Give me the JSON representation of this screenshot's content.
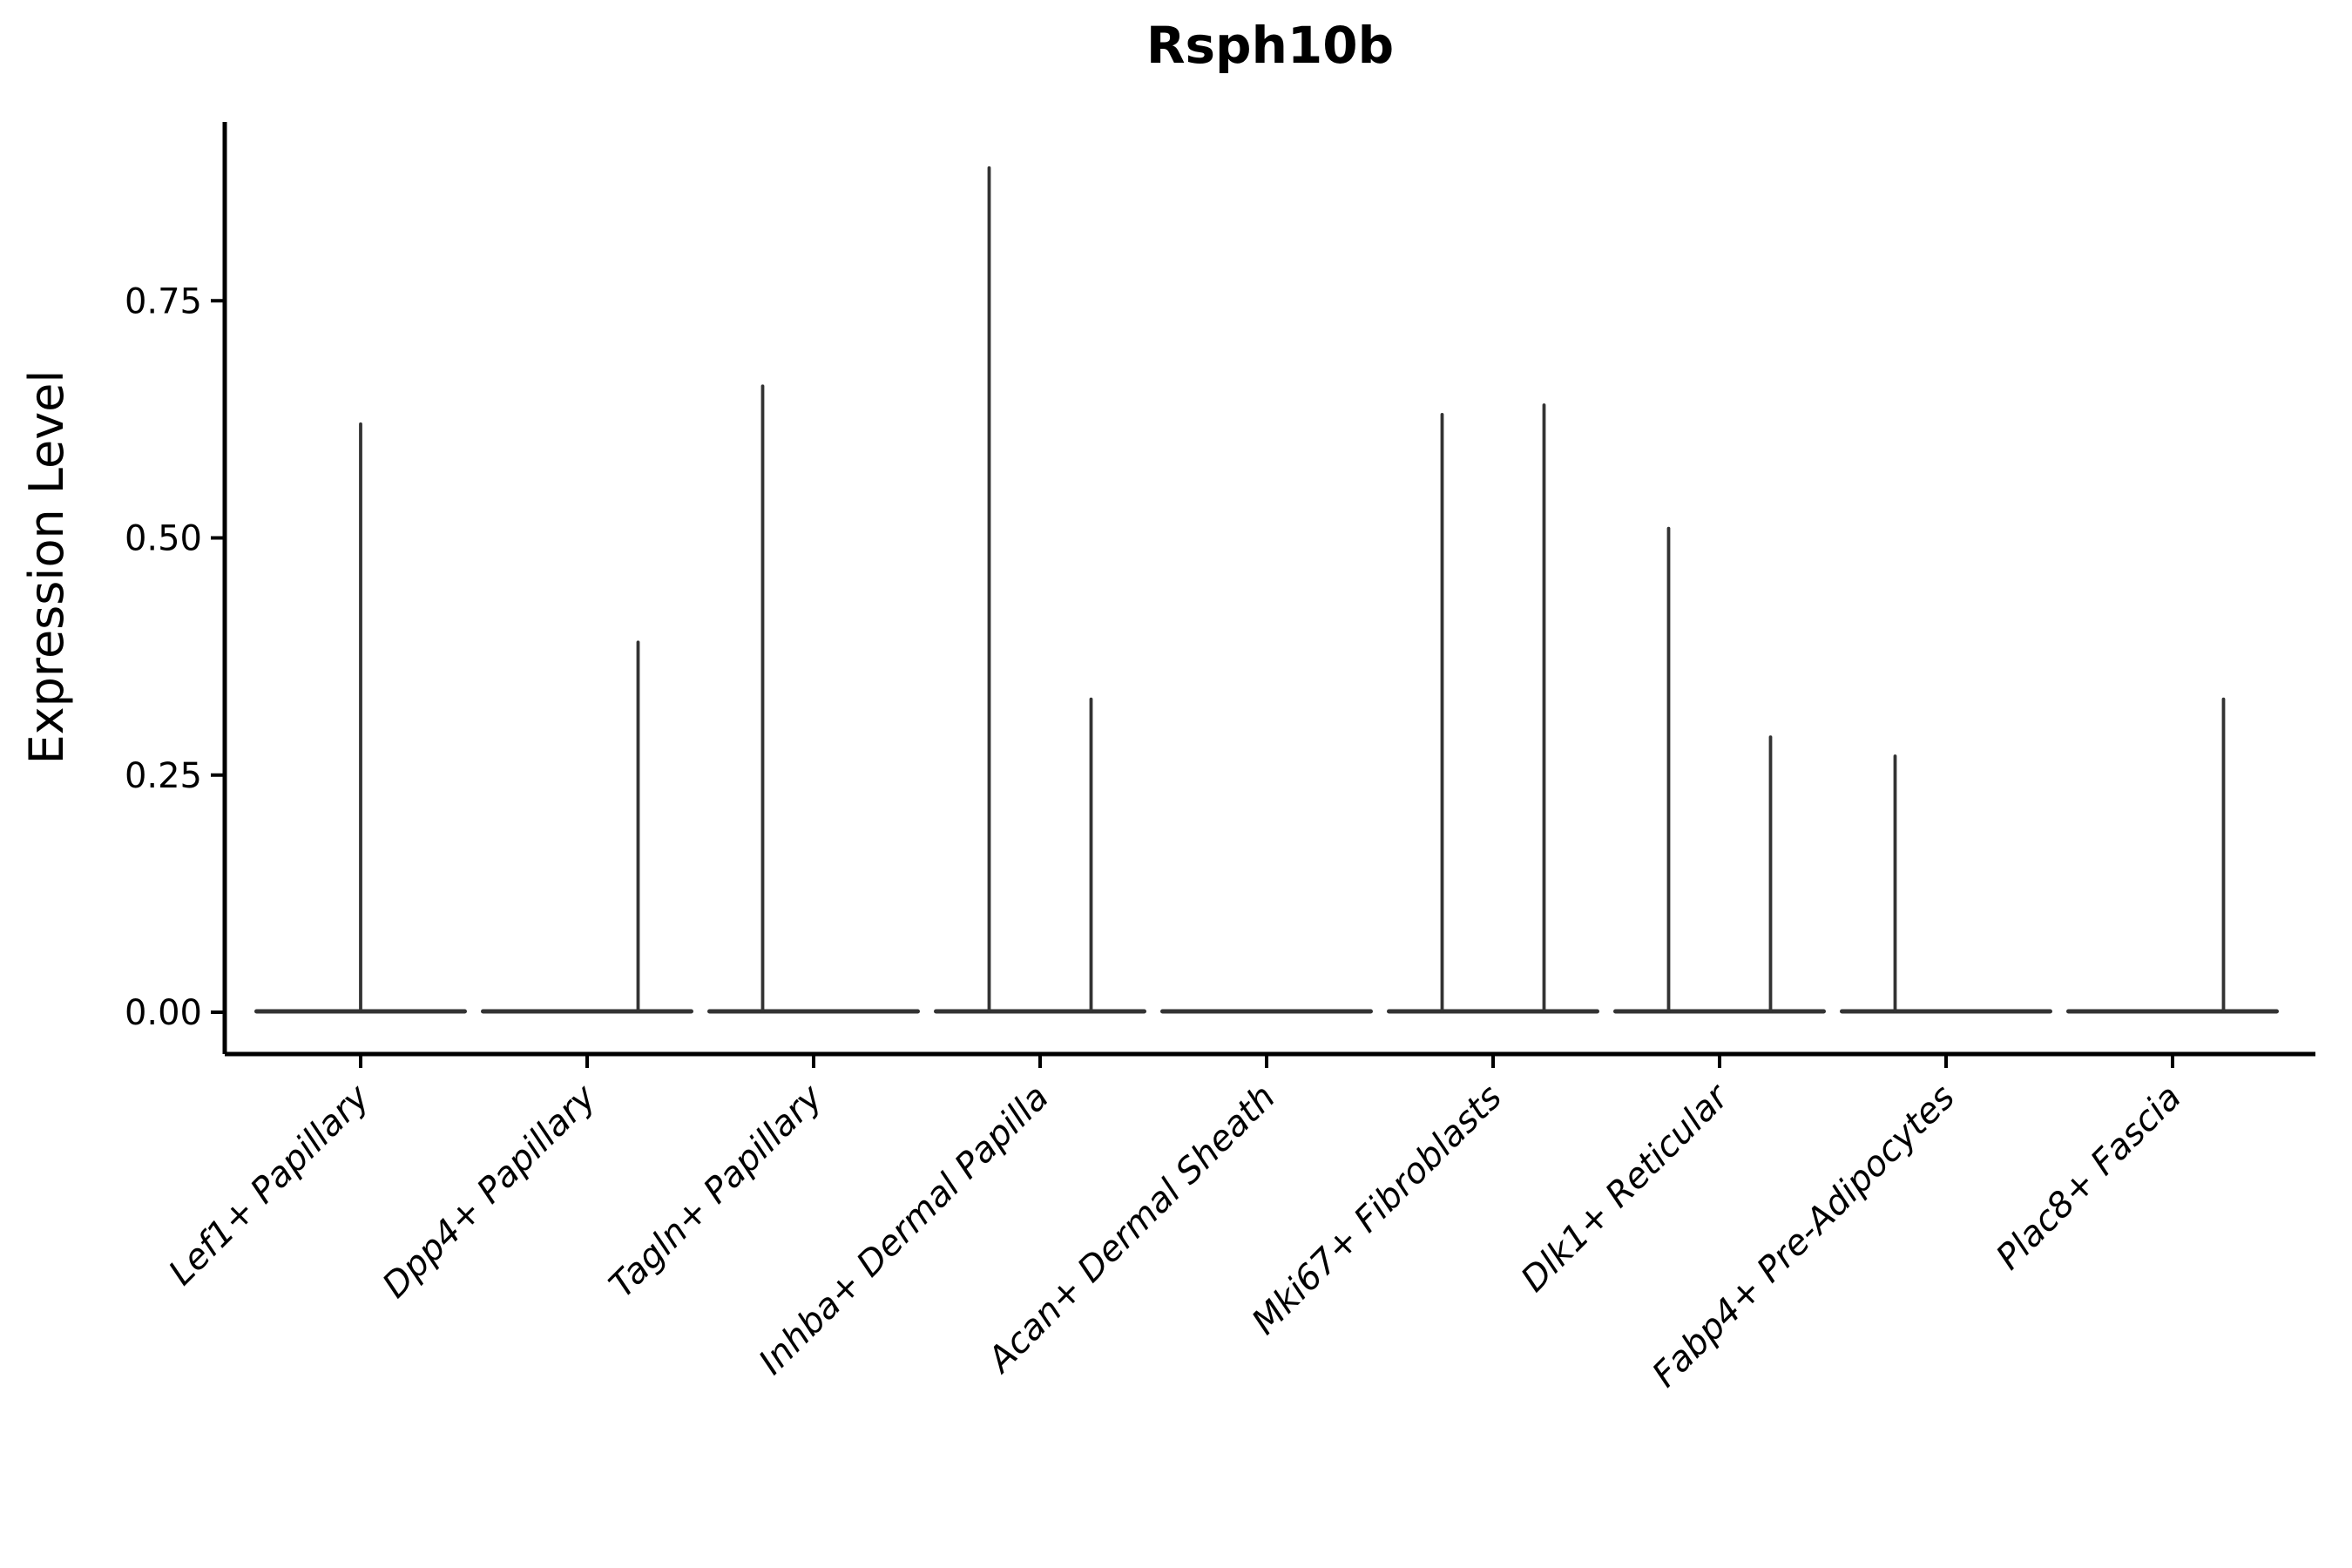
{
  "figure": {
    "background": "#ffffff"
  },
  "chart_data": {
    "type": "violin",
    "title": "Rsph10b",
    "ylabel": "Expression Level",
    "xlabel": "",
    "grid": false,
    "legend_position": "none",
    "ylim": [
      -0.044,
      0.938
    ],
    "yticks": {
      "values": [
        0,
        0.25,
        0.5,
        0.75
      ],
      "labels": [
        "0.00",
        "0.25",
        "0.50",
        "0.75"
      ]
    },
    "axis_color": "#000000",
    "violin_color": "#333333",
    "description": "Mostly-zero expression distributions rendered as flat baselines at 0 with thin density spikes up to each group's maximum value",
    "categories": [
      {
        "label": "Lef1+ Papillary",
        "violins": [
          {
            "position": "center",
            "max": 0.62
          }
        ]
      },
      {
        "label": "Dpp4+ Papillary",
        "violins": [
          {
            "position": "left",
            "max": 0
          },
          {
            "position": "right",
            "max": 0.39
          }
        ]
      },
      {
        "label": "Tagln+ Papillary",
        "violins": [
          {
            "position": "left",
            "max": 0.66
          },
          {
            "position": "right",
            "max": 0
          }
        ]
      },
      {
        "label": "Inhba+ Dermal Papilla",
        "violins": [
          {
            "position": "left",
            "max": 0.89
          },
          {
            "position": "right",
            "max": 0.33
          }
        ]
      },
      {
        "label": "Acan+ Dermal Sheath",
        "violins": [
          {
            "position": "left",
            "max": 0
          },
          {
            "position": "right",
            "max": 0
          }
        ]
      },
      {
        "label": "Mki67+ Fibroblasts",
        "violins": [
          {
            "position": "left",
            "max": 0.63
          },
          {
            "position": "right",
            "max": 0.64
          }
        ]
      },
      {
        "label": "Dlk1+ Reticular",
        "violins": [
          {
            "position": "left",
            "max": 0.51
          },
          {
            "position": "right",
            "max": 0.29
          }
        ]
      },
      {
        "label": "Fabp4+ Pre-Adipocytes",
        "violins": [
          {
            "position": "left",
            "max": 0.27
          },
          {
            "position": "right",
            "max": 0
          }
        ]
      },
      {
        "label": "Plac8+ Fascia",
        "violins": [
          {
            "position": "left",
            "max": 0
          },
          {
            "position": "right",
            "max": 0.33
          }
        ]
      }
    ]
  }
}
